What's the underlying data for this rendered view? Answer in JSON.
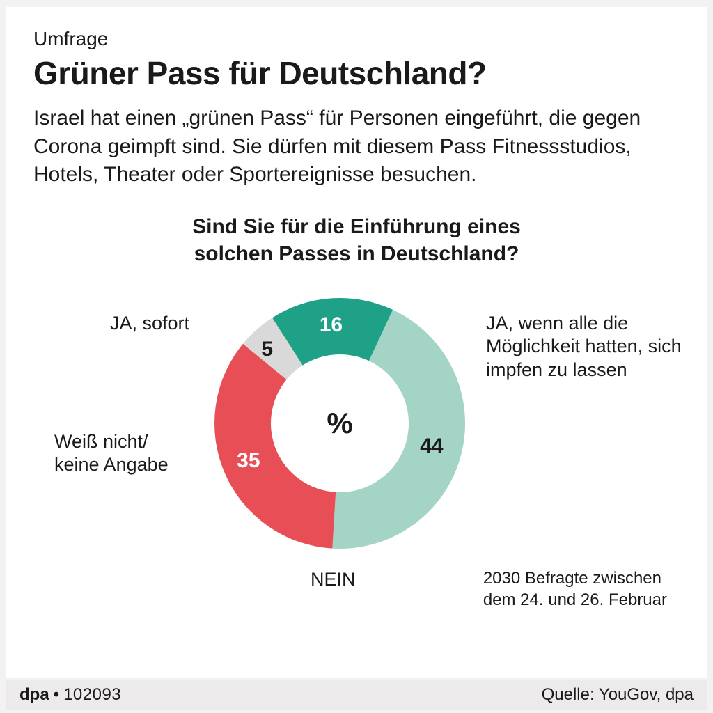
{
  "header": {
    "kicker": "Umfrage",
    "headline": "Grüner Pass für Deutschland?",
    "lede": "Israel hat einen „grünen Pass“ für Personen eingeführt, die gegen Corona geimpft sind. Sie dürfen mit diesem Pass Fitnessstudios, Hotels, Theater oder Sportereignisse besuchen."
  },
  "chart": {
    "type": "donut",
    "question_line1": "Sind Sie für die Einführung eines",
    "question_line2": "solchen Passes in Deutschland?",
    "center_symbol": "%",
    "inner_radius_ratio": 0.55,
    "background_color": "#ffffff",
    "segments": [
      {
        "key": "yes_conditional",
        "value": 44,
        "color": "#a3d4c6",
        "label": "JA, wenn alle die Möglichkeit hatten, sich impfen zu lassen",
        "value_text_color": "#1a1a1a"
      },
      {
        "key": "no",
        "value": 35,
        "color": "#e84e55",
        "label": "NEIN",
        "value_text_color": "#ffffff"
      },
      {
        "key": "dontknow",
        "value": 5,
        "color": "#d9d9d9",
        "label": "Weiß nicht/ keine Angabe",
        "value_text_color": "#1a1a1a"
      },
      {
        "key": "yes_now",
        "value": 16,
        "color": "#1fa187",
        "label": "JA, sofort",
        "value_text_color": "#ffffff"
      }
    ],
    "start_angle_deg": -65,
    "label_fontsize": 27,
    "value_fontsize": 30,
    "value_fontweight": 700
  },
  "sample_note": {
    "line1": "2030 Befragte zwischen",
    "line2": "dem 24. und 26. Februar"
  },
  "footer": {
    "brand": "dpa",
    "separator": "•",
    "code": "102093",
    "source": "Quelle: YouGov, dpa"
  }
}
